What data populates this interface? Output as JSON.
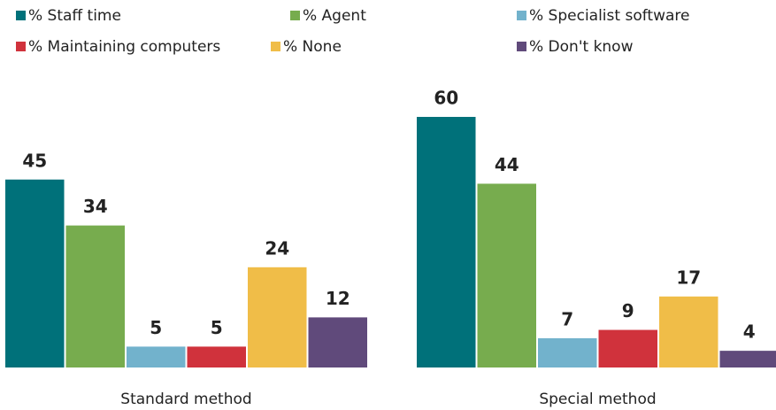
{
  "chart_data": {
    "type": "bar",
    "categories": [
      "Standard method",
      "Special method"
    ],
    "series": [
      {
        "name": "% Staff time",
        "color": "#00717a",
        "values": [
          45,
          60
        ]
      },
      {
        "name": "% Agent",
        "color": "#77ac4e",
        "values": [
          34,
          44
        ]
      },
      {
        "name": "% Specialist software",
        "color": "#72b2cc",
        "values": [
          5,
          7
        ]
      },
      {
        "name": "% Maintaining computers",
        "color": "#d0323c",
        "values": [
          5,
          9
        ]
      },
      {
        "name": "% None",
        "color": "#f0bd48",
        "values": [
          24,
          17
        ]
      },
      {
        "name": "% Don't know",
        "color": "#604a7b",
        "values": [
          12,
          4
        ]
      }
    ],
    "ylim": [
      0,
      60
    ],
    "legend": "top"
  }
}
